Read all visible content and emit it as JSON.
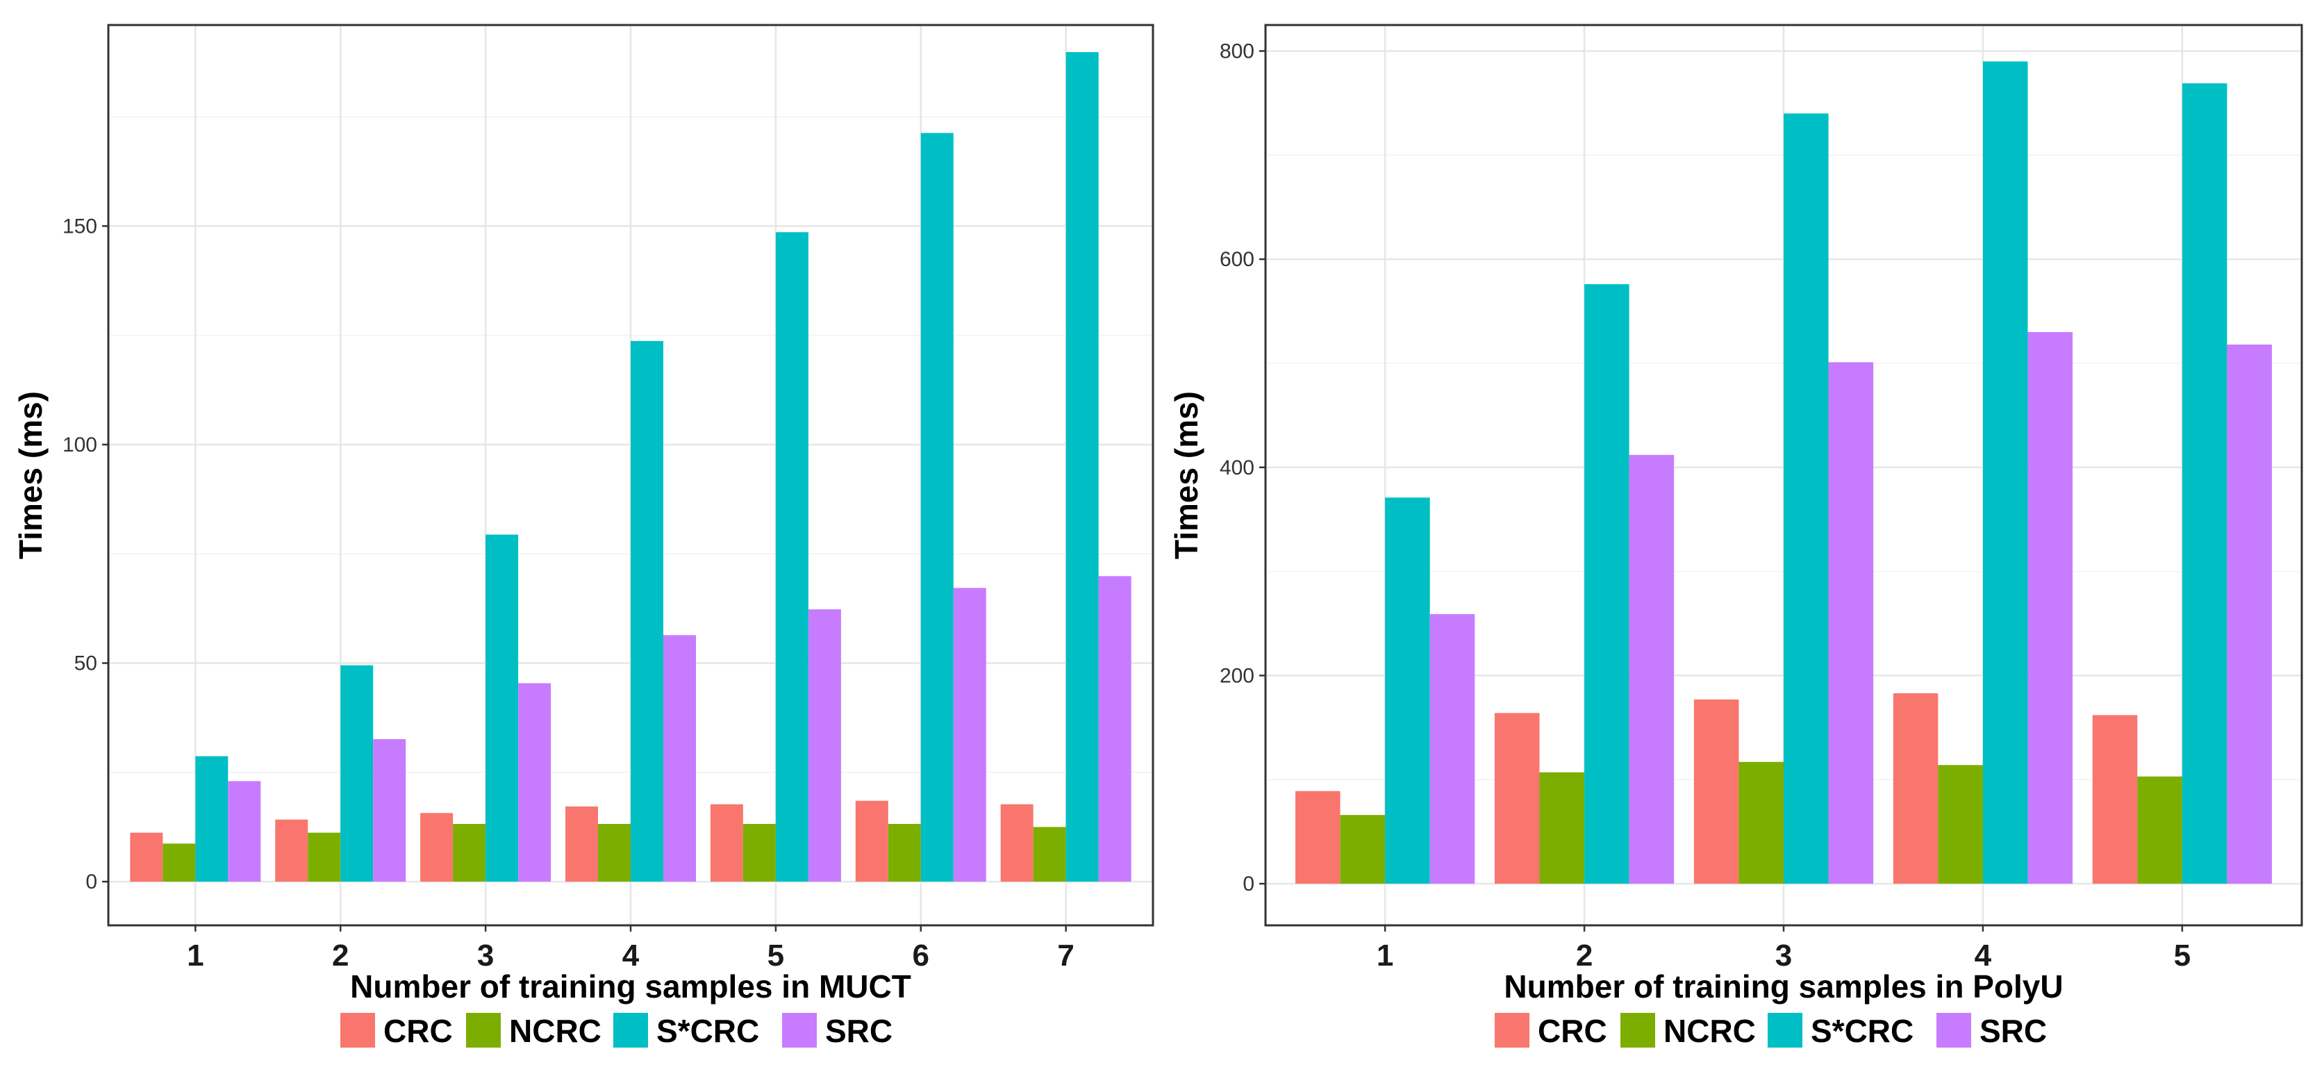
{
  "legend_colors": {
    "CRC": "#F8766D",
    "NCRC": "#7CAE00",
    "S*CRC": "#00BFC4",
    "SRC": "#C77CFF"
  },
  "chart_data": [
    {
      "type": "bar",
      "xlabel": "Number of training samples in MUCT",
      "ylabel": "Times (ms)",
      "categories": [
        "1",
        "2",
        "3",
        "4",
        "5",
        "6",
        "7"
      ],
      "ylim": [
        -10,
        196
      ],
      "yticks": [
        0,
        50,
        100,
        150
      ],
      "grid": true,
      "legend_position": "bottom",
      "series": [
        {
          "name": "CRC",
          "color": "#F8766D",
          "values": [
            11.2,
            14.2,
            15.7,
            17.2,
            17.7,
            18.5,
            17.7
          ]
        },
        {
          "name": "NCRC",
          "color": "#7CAE00",
          "values": [
            8.7,
            11.2,
            13.2,
            13.2,
            13.2,
            13.2,
            12.5
          ]
        },
        {
          "name": "S*CRC",
          "color": "#00BFC4",
          "values": [
            28.7,
            49.5,
            79.4,
            123.7,
            148.6,
            171.3,
            189.8
          ]
        },
        {
          "name": "SRC",
          "color": "#C77CFF",
          "values": [
            23.0,
            32.6,
            45.4,
            56.4,
            62.3,
            67.2,
            69.9
          ]
        }
      ]
    },
    {
      "type": "bar",
      "xlabel": "Number of training samples in PolyU",
      "ylabel": "Times (ms)",
      "categories": [
        "1",
        "2",
        "3",
        "4",
        "5"
      ],
      "ylim": [
        -40,
        825
      ],
      "yticks": [
        0,
        200,
        400,
        600,
        800
      ],
      "grid": true,
      "legend_position": "bottom",
      "series": [
        {
          "name": "CRC",
          "color": "#F8766D",
          "values": [
            89,
            164,
            177,
            183,
            162
          ]
        },
        {
          "name": "NCRC",
          "color": "#7CAE00",
          "values": [
            66,
            107,
            117,
            114,
            103
          ]
        },
        {
          "name": "S*CRC",
          "color": "#00BFC4",
          "values": [
            371,
            576,
            740,
            790,
            769
          ]
        },
        {
          "name": "SRC",
          "color": "#C77CFF",
          "values": [
            259,
            412,
            501,
            530,
            518
          ]
        }
      ]
    }
  ]
}
